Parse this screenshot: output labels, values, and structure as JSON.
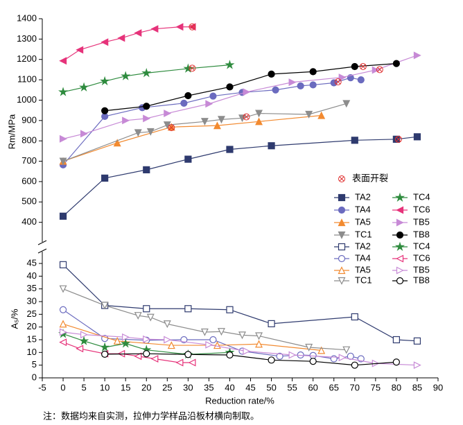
{
  "chart_data": [
    {
      "type": "line",
      "y_label": "Rm/MPa",
      "ylim": [
        300,
        1400
      ],
      "yticks": [
        400,
        500,
        600,
        700,
        800,
        900,
        1000,
        1100,
        1200,
        1300,
        1400
      ],
      "filled": true,
      "series": [
        {
          "name": "TA2",
          "color": "#2e3a6e",
          "marker": "square",
          "x": [
            0,
            10,
            20,
            30,
            40,
            50,
            70,
            80,
            85
          ],
          "values": [
            430,
            617,
            658,
            710,
            758,
            776,
            803,
            808,
            820
          ]
        },
        {
          "name": "TA4",
          "color": "#6b6bbf",
          "marker": "circle",
          "x": [
            0,
            10,
            19,
            29,
            36,
            43,
            51,
            57,
            60,
            65,
            69,
            71.5
          ],
          "values": [
            682,
            920,
            963,
            985,
            1020,
            1038,
            1050,
            1070,
            1075,
            1085,
            1110,
            1100
          ]
        },
        {
          "name": "TA5",
          "color": "#f28a30",
          "marker": "triangle-up",
          "x": [
            0,
            13,
            26,
            37,
            47,
            62
          ],
          "values": [
            700,
            790,
            868,
            875,
            895,
            925
          ]
        },
        {
          "name": "TC1",
          "color": "#8c8c8c",
          "marker": "triangle-down",
          "x": [
            0,
            18,
            21,
            25,
            34,
            38,
            43,
            47,
            59,
            68
          ],
          "values": [
            700,
            840,
            845,
            878,
            895,
            905,
            912,
            935,
            930,
            983
          ]
        },
        {
          "name": "TC4",
          "color": "#2e8b3e",
          "marker": "star",
          "x": [
            0,
            5,
            10,
            15,
            20,
            30,
            40
          ],
          "values": [
            1040,
            1063,
            1093,
            1118,
            1133,
            1155,
            1173
          ]
        },
        {
          "name": "TC6",
          "color": "#e6337a",
          "marker": "triangle-left",
          "x": [
            0,
            4,
            10,
            14,
            18,
            22,
            28,
            31
          ],
          "values": [
            1193,
            1247,
            1285,
            1305,
            1330,
            1350,
            1360,
            1360
          ]
        },
        {
          "name": "TB5",
          "color": "#c78ad6",
          "marker": "triangle-right",
          "x": [
            0,
            5,
            15,
            20,
            25,
            35,
            44,
            55,
            67,
            75,
            85
          ],
          "values": [
            810,
            835,
            900,
            910,
            935,
            982,
            1040,
            1088,
            1112,
            1148,
            1220
          ]
        },
        {
          "name": "TB8",
          "color": "#000000",
          "marker": "circle",
          "x": [
            10,
            20,
            30,
            40,
            50,
            60,
            70,
            80
          ],
          "values": [
            948,
            970,
            1022,
            1065,
            1128,
            1140,
            1165,
            1180
          ]
        }
      ],
      "cracks": {
        "name": "表面开裂",
        "color": "#e03030",
        "x": [
          31,
          31,
          44,
          26,
          66,
          72,
          76,
          80.5
        ],
        "values": [
          1360,
          1157,
          918,
          865,
          1090,
          1165,
          1150,
          808
        ]
      }
    },
    {
      "type": "line",
      "y_label": "A₅/%",
      "x_label": "Reduction rate/%",
      "ylim": [
        0,
        48
      ],
      "yticks": [
        0,
        5,
        10,
        15,
        20,
        25,
        30,
        35,
        40,
        45
      ],
      "xlim": [
        -5,
        90
      ],
      "xticks": [
        -5,
        0,
        5,
        10,
        15,
        20,
        25,
        30,
        35,
        40,
        45,
        50,
        55,
        60,
        65,
        70,
        75,
        80,
        85,
        90
      ],
      "filled": false,
      "series": [
        {
          "name": "TA2",
          "color": "#2e3a6e",
          "marker": "square",
          "x": [
            0,
            10,
            20,
            30,
            40,
            50,
            70,
            80,
            85
          ],
          "values": [
            44.5,
            28.5,
            27.2,
            27.2,
            26.8,
            21.3,
            24,
            15,
            14.5
          ]
        },
        {
          "name": "TA4",
          "color": "#6b6bbf",
          "marker": "circle",
          "x": [
            0,
            10,
            20,
            29,
            36,
            43,
            52,
            57,
            60,
            65,
            69,
            71.5
          ],
          "values": [
            26.8,
            15.5,
            14.8,
            15,
            15,
            10.5,
            8.5,
            9,
            8.8,
            7.5,
            8.5,
            7.5
          ]
        },
        {
          "name": "TA5",
          "color": "#f28a30",
          "marker": "triangle-up",
          "x": [
            0,
            13,
            26,
            37,
            47,
            62
          ],
          "values": [
            21.2,
            14.5,
            12.8,
            12.8,
            13.3,
            10.8
          ]
        },
        {
          "name": "TC1",
          "color": "#8c8c8c",
          "marker": "triangle-down",
          "x": [
            0,
            10,
            18,
            21,
            25,
            34,
            38,
            43,
            47,
            59,
            68
          ],
          "values": [
            35,
            28.5,
            24.5,
            23.8,
            21.2,
            18,
            18.2,
            16.8,
            16.5,
            12,
            11
          ]
        },
        {
          "name": "TC4",
          "color": "#2e8b3e",
          "marker": "star",
          "x": [
            0,
            5,
            10,
            15,
            20,
            30,
            40
          ],
          "values": [
            17.3,
            14.5,
            12,
            13.5,
            11,
            9.2,
            10
          ]
        },
        {
          "name": "TC6",
          "color": "#e6337a",
          "marker": "triangle-left",
          "x": [
            0,
            4,
            10,
            14,
            18,
            22,
            28,
            31
          ],
          "values": [
            14,
            11.5,
            9.5,
            9.5,
            8.5,
            7.5,
            6,
            6
          ]
        },
        {
          "name": "TB5",
          "color": "#c78ad6",
          "marker": "triangle-right",
          "x": [
            0,
            5,
            15,
            20,
            25,
            35,
            44,
            55,
            67,
            75,
            85
          ],
          "values": [
            18,
            17,
            16,
            15.2,
            15,
            13,
            10.5,
            9,
            8,
            5.7,
            5
          ]
        },
        {
          "name": "TB8",
          "color": "#000000",
          "marker": "circle",
          "x": [
            10,
            20,
            30,
            40,
            50,
            60,
            70,
            80
          ],
          "values": [
            9.3,
            9.5,
            9.2,
            9,
            7,
            6.5,
            5,
            6.2
          ]
        }
      ]
    }
  ],
  "note": "注：数据均来自实测，拉伸力学样品沿板材横向制取。"
}
